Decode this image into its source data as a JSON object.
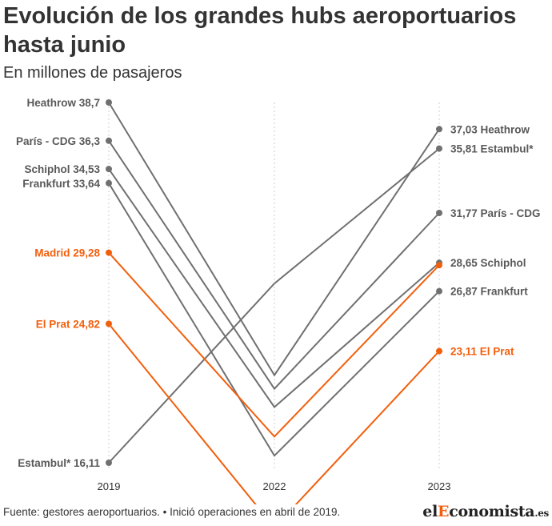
{
  "header": {
    "title": "Evolución de los grandes hubs aeroportuarios hasta junio",
    "subtitle": "En millones de pasajeros"
  },
  "footer": {
    "source": "Fuente: gestores aeroportuarios. • Inició operaciones en abril de 2019.",
    "logo_prefix": "el",
    "logo_accent": "E",
    "logo_suffix": "conomista",
    "logo_tld": ".es"
  },
  "colors": {
    "default_line": "#707070",
    "highlight_line": "#f25f0c",
    "gridline": "#cccccc"
  },
  "chart_data": {
    "type": "line",
    "x": [
      "2019",
      "2022",
      "2023"
    ],
    "ylim": [
      15,
      40
    ],
    "grid": "vertical-dotted",
    "series": [
      {
        "name": "Heathrow",
        "highlight": false,
        "values": [
          38.7,
          21.6,
          37.03
        ],
        "label_start": "Heathrow 38,7",
        "label_end": "37,03 Heathrow"
      },
      {
        "name": "París - CDG",
        "highlight": false,
        "values": [
          36.3,
          20.75,
          31.77
        ],
        "label_start": "París - CDG 36,3",
        "label_end": "31,77 París - CDG"
      },
      {
        "name": "Schiphol",
        "highlight": false,
        "values": [
          34.53,
          19.6,
          28.65
        ],
        "label_start": "Schiphol 34,53",
        "label_end": "28,65 Schiphol"
      },
      {
        "name": "Frankfurt",
        "highlight": false,
        "values": [
          33.64,
          16.55,
          26.87
        ],
        "label_start": "Frankfurt 33,64",
        "label_end": "26,87 Frankfurt"
      },
      {
        "name": "Madrid",
        "highlight": true,
        "values": [
          29.28,
          17.75,
          28.5
        ],
        "label_start": "Madrid 29,28",
        "label_end": ""
      },
      {
        "name": "El Prat",
        "highlight": true,
        "values": [
          24.82,
          12.05,
          23.11
        ],
        "label_start": "El Prat 24,82",
        "label_end": "23,11 El Prat"
      },
      {
        "name": "Estambul",
        "highlight": false,
        "values": [
          16.11,
          27.35,
          35.81
        ],
        "label_start": "Estambul* 16,11",
        "label_end": "35,81 Estambul*"
      }
    ]
  }
}
